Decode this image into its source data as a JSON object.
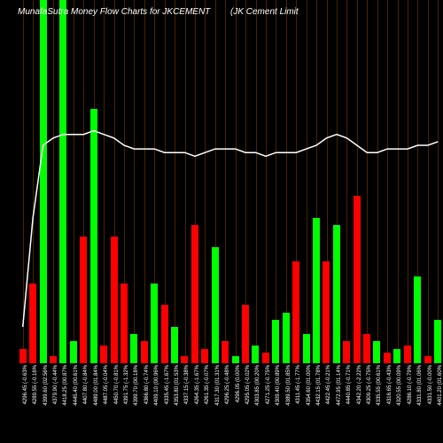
{
  "chart": {
    "type": "bar-with-line",
    "title": "MunafaSutra Money Flow Charts for JKCEMENT",
    "subtitle": "(JK Cement Limit",
    "background": "#000000",
    "grid_color": "#663300",
    "line_color": "#ffffff",
    "colors": {
      "up": "#00ff00",
      "down": "#ff0000"
    },
    "ylim": [
      0,
      100
    ],
    "bars": [
      {
        "h": 4,
        "c": "down",
        "label": "4296.45 (-0.63%"
      },
      {
        "h": 22,
        "c": "down",
        "label": "4289.55 (-0.16%"
      },
      {
        "h": 100,
        "c": "up",
        "label": "4399.60 (02.56%"
      },
      {
        "h": 2,
        "c": "down",
        "label": "4379.90 (-0.44%"
      },
      {
        "h": 100,
        "c": "up",
        "label": "4418.25 (00.87%"
      },
      {
        "h": 6,
        "c": "up",
        "label": "4445.40 (00.61%"
      },
      {
        "h": 35,
        "c": "down",
        "label": "4407.80 (-0.84%"
      },
      {
        "h": 70,
        "c": "up",
        "label": "4489.00 (01.84%"
      },
      {
        "h": 5,
        "c": "down",
        "label": "4487.05 (-0.04%"
      },
      {
        "h": 35,
        "c": "down",
        "label": "4450.70 (-0.81%"
      },
      {
        "h": 22,
        "c": "down",
        "label": "4391.75 (-1.32%"
      },
      {
        "h": 8,
        "c": "up",
        "label": "4399.70 (00.18%"
      },
      {
        "h": 6,
        "c": "down",
        "label": "4366.80 (-0.74%"
      },
      {
        "h": 22,
        "c": "up",
        "label": "4409.10 (00.96%"
      },
      {
        "h": 16,
        "c": "down",
        "label": "4335.45 (-1.67%"
      },
      {
        "h": 10,
        "c": "up",
        "label": "4353.80 (01.53%"
      },
      {
        "h": 2,
        "c": "down",
        "label": "4337.15 (-0.38%"
      },
      {
        "h": 38,
        "c": "down",
        "label": "4264.35 (-1.67%"
      },
      {
        "h": 4,
        "c": "down",
        "label": "4261.35 (-0.07%"
      },
      {
        "h": 32,
        "c": "up",
        "label": "4317.30 (01.31%"
      },
      {
        "h": 6,
        "c": "down",
        "label": "4296.25 (-0.48%"
      },
      {
        "h": 2,
        "c": "up",
        "label": "4296.05 (0.00%"
      },
      {
        "h": 16,
        "c": "down",
        "label": "4295.05 (-0.02%"
      },
      {
        "h": 5,
        "c": "up",
        "label": "4303.85 (00.20%"
      },
      {
        "h": 3,
        "c": "down",
        "label": "4271.25 (-0.75%"
      },
      {
        "h": 12,
        "c": "up",
        "label": "4309.40 (00.89%"
      },
      {
        "h": 14,
        "c": "up",
        "label": "4389.50 (01.85%"
      },
      {
        "h": 28,
        "c": "down",
        "label": "4311.45 (-1.77%"
      },
      {
        "h": 8,
        "c": "up",
        "label": "4354.60 (01.00%"
      },
      {
        "h": 40,
        "c": "up",
        "label": "4432.15 (01.78%"
      },
      {
        "h": 28,
        "c": "down",
        "label": "4422.45 (-0.21%"
      },
      {
        "h": 38,
        "c": "up",
        "label": "4472.95 (01.14%"
      },
      {
        "h": 6,
        "c": "down",
        "label": "4440.85 (-0.71%"
      },
      {
        "h": 46,
        "c": "down",
        "label": "4342.20 (-2.22%"
      },
      {
        "h": 8,
        "c": "down",
        "label": "4309.25 (-0.75%"
      },
      {
        "h": 6,
        "c": "up",
        "label": "4335.55 (00.61%"
      },
      {
        "h": 3,
        "c": "down",
        "label": "4316.65 (-0.43%"
      },
      {
        "h": 4,
        "c": "up",
        "label": "4320.55 (00.09%"
      },
      {
        "h": 5,
        "c": "down",
        "label": "4286.10 (-0.79%"
      },
      {
        "h": 24,
        "c": "up",
        "label": "4331.80 (01.06%"
      },
      {
        "h": 2,
        "c": "down",
        "label": "4331.50 (-0.00%"
      },
      {
        "h": 12,
        "c": "up",
        "label": "4401.20 (01.60%"
      }
    ],
    "line": [
      90,
      60,
      40,
      38,
      37,
      37,
      37,
      36,
      37,
      38,
      40,
      41,
      41,
      41,
      42,
      42,
      42,
      43,
      42,
      41,
      41,
      41,
      42,
      42,
      43,
      42,
      42,
      42,
      41,
      40,
      38,
      37,
      38,
      40,
      42,
      42,
      41,
      41,
      41,
      40,
      40,
      39
    ]
  }
}
